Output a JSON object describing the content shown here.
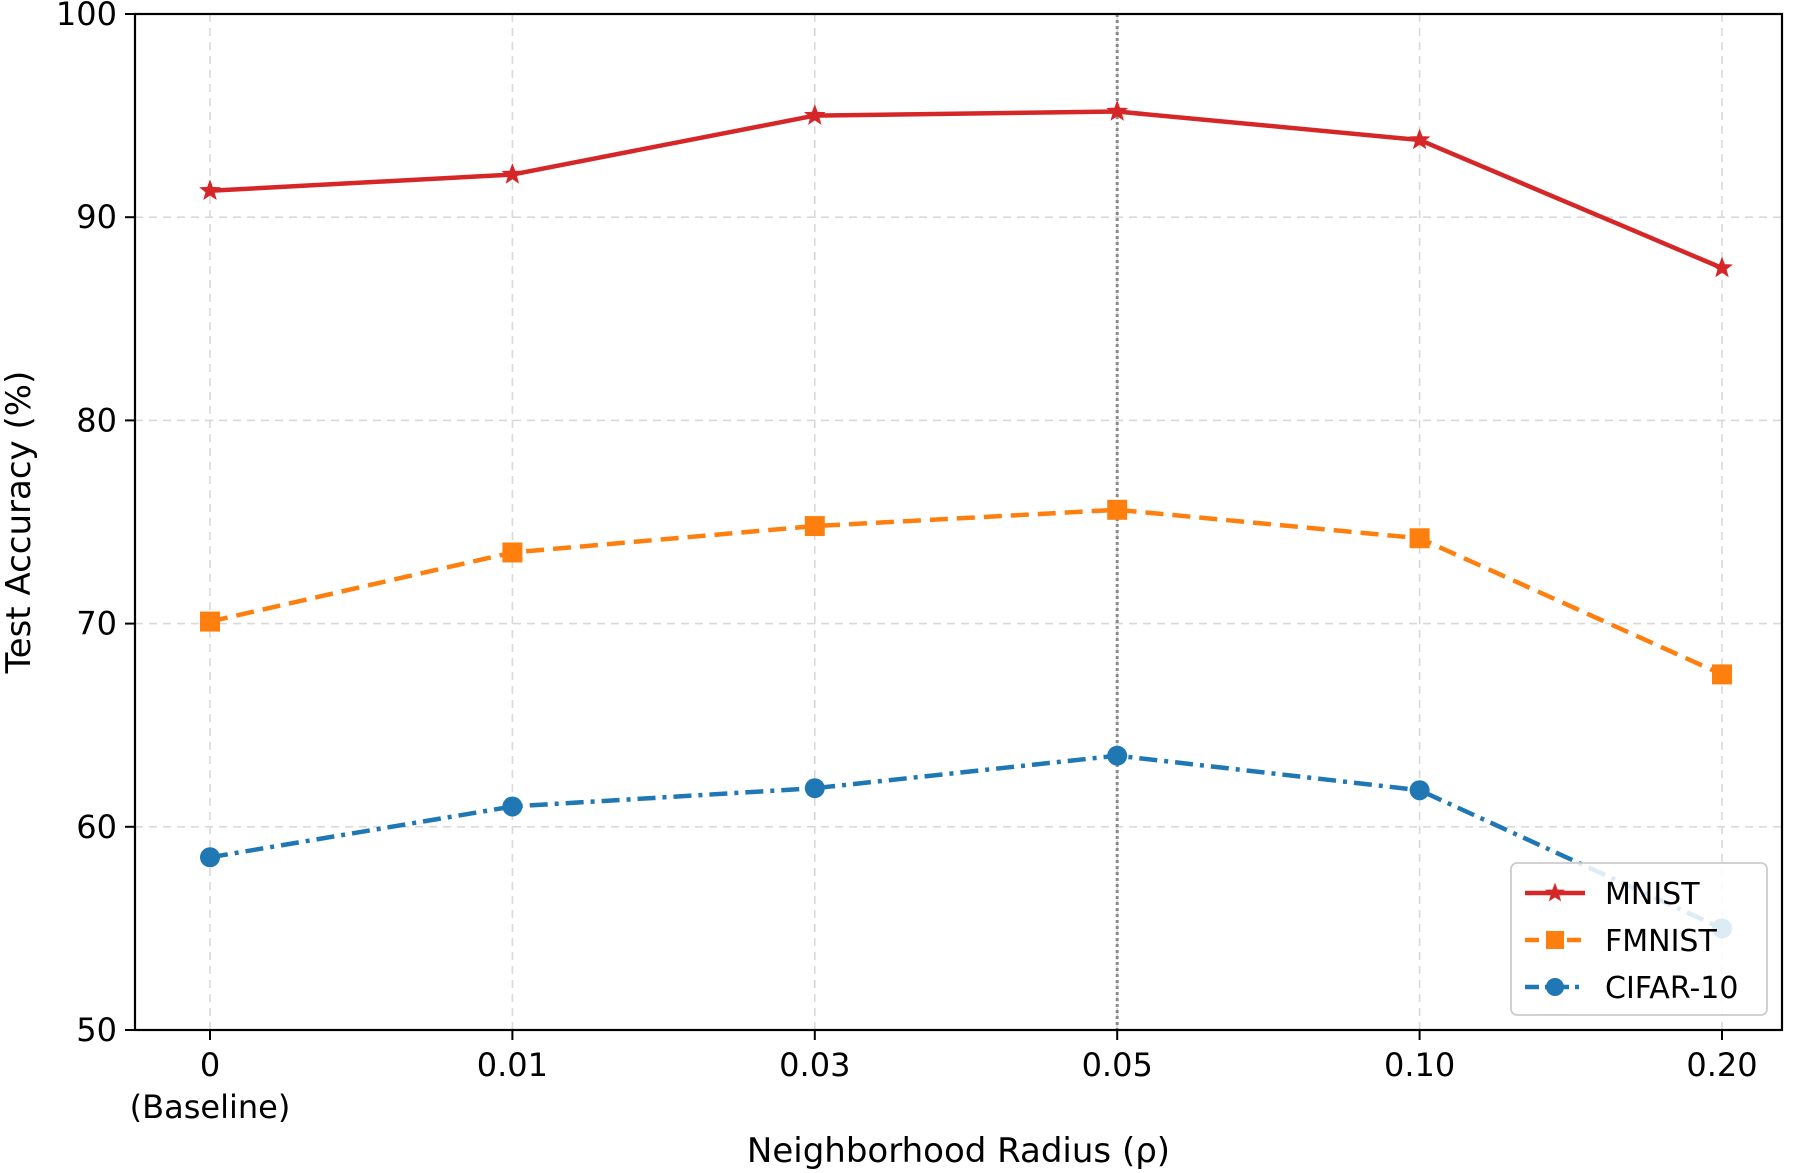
{
  "chart_data": {
    "type": "line",
    "title": "",
    "xlabel": "Neighborhood Radius (ρ)",
    "ylabel": "Test Accuracy (%)",
    "categories": [
      "0\n(Baseline)",
      "0.01",
      "0.03",
      "0.05",
      "0.10",
      "0.20"
    ],
    "ylim": [
      50,
      100
    ],
    "yticks": [
      50,
      60,
      70,
      80,
      90,
      100
    ],
    "grid": true,
    "highlight_category": "0.05",
    "legend_position": "lower right",
    "series": [
      {
        "name": "MNIST",
        "values": [
          91.3,
          92.1,
          95.0,
          95.2,
          93.8,
          87.5
        ],
        "color": "#d62728",
        "marker": "star",
        "linestyle": "solid"
      },
      {
        "name": "FMNIST",
        "values": [
          70.1,
          73.5,
          74.8,
          75.6,
          74.2,
          67.5
        ],
        "color": "#ff7f0e",
        "marker": "square",
        "linestyle": "dashed"
      },
      {
        "name": "CIFAR-10",
        "values": [
          58.5,
          61.0,
          61.9,
          63.5,
          61.8,
          55.0
        ],
        "color": "#1f77b4",
        "marker": "circle",
        "linestyle": "dashdot"
      }
    ]
  }
}
